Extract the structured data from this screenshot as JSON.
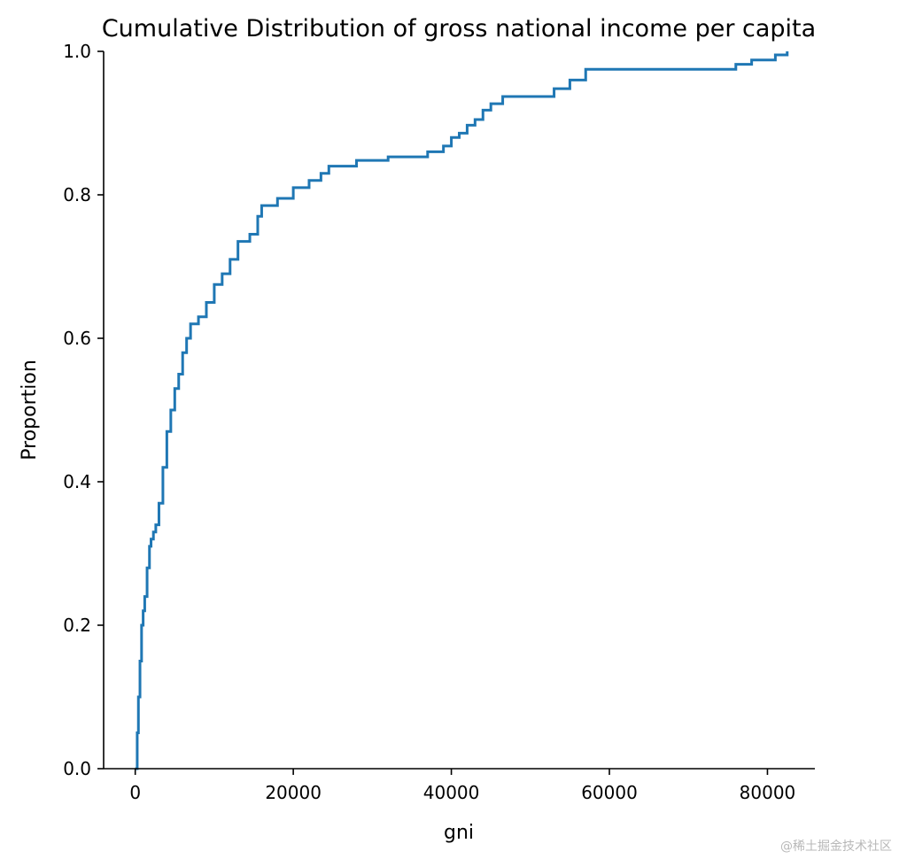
{
  "chart_data": {
    "type": "line",
    "subtype": "ecdf-step",
    "title": "Cumulative Distribution of gross national income per capita",
    "xlabel": "gni",
    "ylabel": "Proportion",
    "xlim": [
      -4000,
      86000
    ],
    "ylim": [
      0,
      1
    ],
    "xticks": [
      0,
      20000,
      40000,
      60000,
      80000
    ],
    "xtick_labels": [
      "0",
      "20000",
      "40000",
      "60000",
      "80000"
    ],
    "yticks": [
      0,
      0.2,
      0.4,
      0.6,
      0.8,
      1.0
    ],
    "ytick_labels": [
      "0.0",
      "0.2",
      "0.4",
      "0.6",
      "0.8",
      "1.0"
    ],
    "grid": false,
    "series": [
      {
        "color": "#1f77b4",
        "x": [
          0,
          250,
          400,
          600,
          800,
          1000,
          1200,
          1500,
          1800,
          2000,
          2300,
          2600,
          3000,
          3500,
          4000,
          4500,
          5000,
          5500,
          6000,
          6500,
          7000,
          8000,
          9000,
          10000,
          11000,
          12000,
          13000,
          14500,
          15500,
          16000,
          18000,
          20000,
          22000,
          23500,
          24500,
          28000,
          32000,
          37000,
          39000,
          40000,
          41000,
          42000,
          43000,
          44000,
          45000,
          46500,
          53000,
          55000,
          57000,
          76000,
          78000,
          81000,
          82500
        ],
        "y": [
          0.0,
          0.05,
          0.1,
          0.15,
          0.2,
          0.22,
          0.24,
          0.28,
          0.31,
          0.32,
          0.33,
          0.34,
          0.37,
          0.42,
          0.47,
          0.5,
          0.53,
          0.55,
          0.58,
          0.6,
          0.62,
          0.63,
          0.65,
          0.675,
          0.69,
          0.71,
          0.735,
          0.745,
          0.77,
          0.785,
          0.795,
          0.81,
          0.82,
          0.83,
          0.84,
          0.848,
          0.853,
          0.86,
          0.868,
          0.88,
          0.886,
          0.897,
          0.905,
          0.918,
          0.927,
          0.937,
          0.948,
          0.96,
          0.975,
          0.982,
          0.988,
          0.995,
          1.0
        ]
      }
    ]
  },
  "watermark": "@稀土掘金技术社区"
}
